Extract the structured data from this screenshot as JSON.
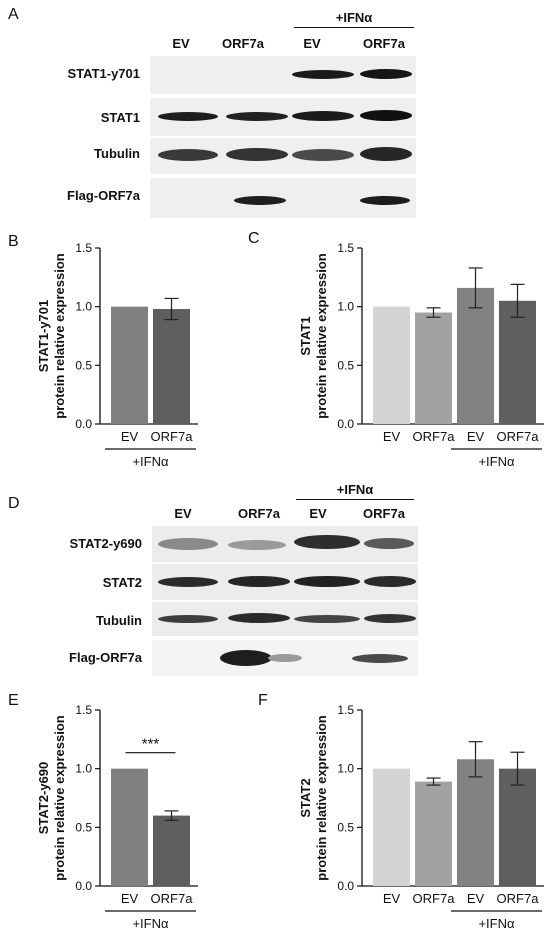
{
  "panels": {
    "A": {
      "letter": "A",
      "treatment": "+IFNα",
      "lanes": [
        "EV",
        "ORF7a",
        "EV",
        "ORF7a"
      ],
      "rows": [
        "STAT1-y701",
        "STAT1",
        "Tubulin",
        "Flag-ORF7a"
      ]
    },
    "D": {
      "letter": "D",
      "treatment": "+IFNα",
      "lanes": [
        "EV",
        "ORF7a",
        "EV",
        "ORF7a"
      ],
      "rows": [
        "STAT2-y690",
        "STAT2",
        "Tubulin",
        "Flag-ORF7a"
      ]
    }
  },
  "chart_data": [
    {
      "panel": "B",
      "type": "bar",
      "categories": [
        "EV",
        "ORF7a"
      ],
      "values": [
        1.0,
        0.98
      ],
      "errors": [
        0,
        0.09
      ],
      "colors": [
        "#808080",
        "#5f5f5f"
      ],
      "ylabel_line1": "STAT1-y701",
      "ylabel_line2": "protein relative expression",
      "ylim": [
        0,
        1.5
      ],
      "yticks": [
        "0.0",
        "0.5",
        "1.0",
        "1.5"
      ],
      "group_label": "+IFNα",
      "significance": ""
    },
    {
      "panel": "C",
      "type": "bar",
      "categories": [
        "EV",
        "ORF7a",
        "EV",
        "ORF7a"
      ],
      "values": [
        1.0,
        0.95,
        1.16,
        1.05
      ],
      "errors": [
        0,
        0.04,
        0.17,
        0.14
      ],
      "colors": [
        "#d4d4d4",
        "#a2a2a2",
        "#828282",
        "#5f5f5f"
      ],
      "ylabel_line1": "STAT1",
      "ylabel_line2": "protein relative expression",
      "ylim": [
        0,
        1.5
      ],
      "yticks": [
        "0.0",
        "0.5",
        "1.0",
        "1.5"
      ],
      "group_label": "+IFNα",
      "significance": ""
    },
    {
      "panel": "E",
      "type": "bar",
      "categories": [
        "EV",
        "ORF7a"
      ],
      "values": [
        1.0,
        0.6
      ],
      "errors": [
        0,
        0.04
      ],
      "colors": [
        "#808080",
        "#5f5f5f"
      ],
      "ylabel_line1": "STAT2-y690",
      "ylabel_line2": "protein relative expression",
      "ylim": [
        0,
        1.5
      ],
      "yticks": [
        "0.0",
        "0.5",
        "1.0",
        "1.5"
      ],
      "group_label": "+IFNα",
      "significance": "***"
    },
    {
      "panel": "F",
      "type": "bar",
      "categories": [
        "EV",
        "ORF7a",
        "EV",
        "ORF7a"
      ],
      "values": [
        1.0,
        0.89,
        1.08,
        1.0
      ],
      "errors": [
        0,
        0.03,
        0.15,
        0.14
      ],
      "colors": [
        "#d4d4d4",
        "#a2a2a2",
        "#828282",
        "#5f5f5f"
      ],
      "ylabel_line1": "STAT2",
      "ylabel_line2": "protein relative expression",
      "ylim": [
        0,
        1.5
      ],
      "yticks": [
        "0.0",
        "0.5",
        "1.0",
        "1.5"
      ],
      "group_label": "+IFNα",
      "significance": ""
    }
  ]
}
